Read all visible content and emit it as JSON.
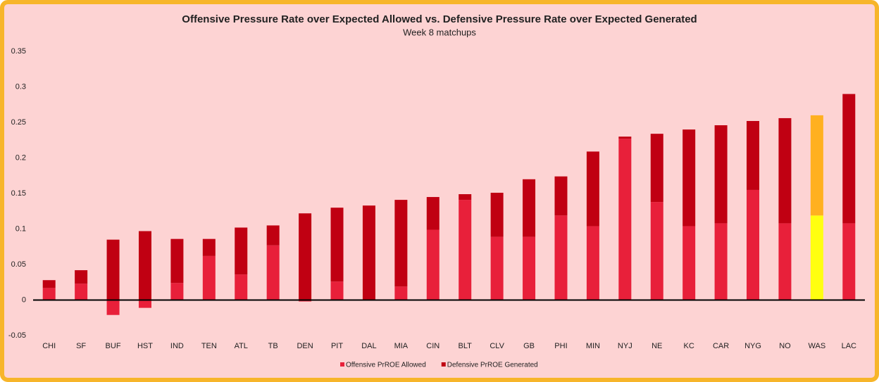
{
  "chart_data": {
    "type": "stacked_bar",
    "title": "Offensive Pressure Rate over Expected Allowed vs. Defensive Pressure Rate over Expected Generated",
    "subtitle": "Week 8 matchups",
    "categories": [
      "CHI",
      "SF",
      "BUF",
      "HST",
      "IND",
      "TEN",
      "ATL",
      "TB",
      "DEN",
      "PIT",
      "DAL",
      "MIA",
      "CIN",
      "BLT",
      "CLV",
      "GB",
      "PHI",
      "MIN",
      "NYJ",
      "NE",
      "KC",
      "CAR",
      "NYG",
      "NO",
      "WAS",
      "LAC"
    ],
    "series": [
      {
        "name": "Offensive PrROE Allowed",
        "color": "#e8203a",
        "highlight_color": "#ffff10",
        "values": [
          0.017,
          0.023,
          -0.021,
          -0.011,
          0.024,
          0.062,
          0.036,
          0.077,
          -0.002,
          0.026,
          0,
          0.019,
          0.099,
          0.141,
          0.089,
          0.089,
          0.119,
          0.104,
          0.227,
          0.138,
          0.104,
          0.108,
          0.155,
          0.108,
          0.119,
          0.108
        ]
      },
      {
        "name": "Defensive PrROE Generated",
        "color": "#c00012",
        "highlight_color": "#ffb020",
        "values": [
          0.011,
          0.019,
          0.085,
          0.097,
          0.062,
          0.024,
          0.066,
          0.028,
          0.122,
          0.104,
          0.133,
          0.122,
          0.046,
          0.008,
          0.062,
          0.081,
          0.055,
          0.105,
          0.003,
          0.096,
          0.136,
          0.138,
          0.097,
          0.148,
          0.141,
          0.182
        ]
      }
    ],
    "highlight": "WAS",
    "ylim": [
      -0.05,
      0.35
    ],
    "yticks": [
      0.35,
      0.3,
      0.25,
      0.2,
      0.15,
      0.1,
      0.05,
      0,
      -0.05
    ],
    "grid": false,
    "legend": "bottom"
  }
}
